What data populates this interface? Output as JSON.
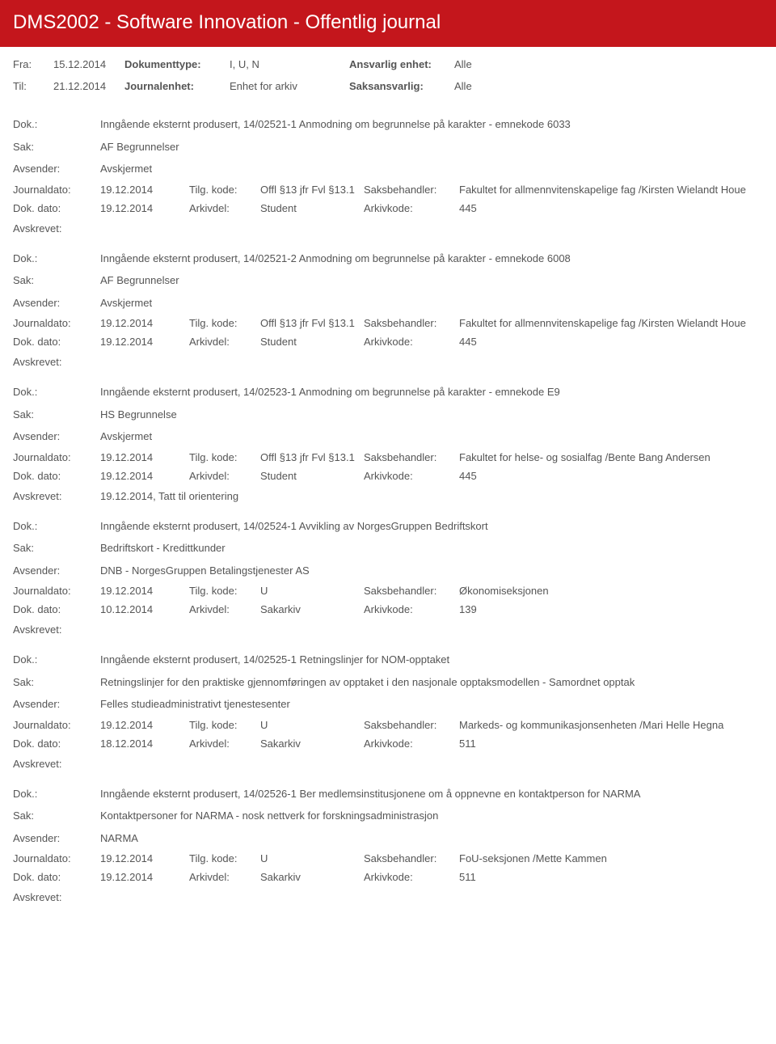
{
  "header": {
    "title": "DMS2002 - Software Innovation - Offentlig journal"
  },
  "meta": {
    "fra_label": "Fra:",
    "fra": "15.12.2014",
    "til_label": "Til:",
    "til": "21.12.2014",
    "doktype_label": "Dokumenttype:",
    "doktype": "I, U, N",
    "journalenhet_label": "Journalenhet:",
    "journalenhet": "Enhet for arkiv",
    "ansvarlig_label": "Ansvarlig enhet:",
    "ansvarlig": "Alle",
    "saksansvarlig_label": "Saksansvarlig:",
    "saksansvarlig": "Alle"
  },
  "labels": {
    "dok": "Dok.:",
    "sak": "Sak:",
    "avsender": "Avsender:",
    "journaldato": "Journaldato:",
    "tilgkode": "Tilg. kode:",
    "saksbehandler": "Saksbehandler:",
    "dokdato": "Dok. dato:",
    "arkivdel": "Arkivdel:",
    "arkivkode": "Arkivkode:",
    "avskrevet": "Avskrevet:"
  },
  "entries": [
    {
      "dok": "Inngående eksternt produsert, 14/02521-1 Anmodning om begrunnelse på karakter - emnekode 6033",
      "sak": "AF Begrunnelser",
      "avsender": "Avskjermet",
      "journaldato": "19.12.2014",
      "tilgkode": "Offl §13 jfr Fvl §13.1",
      "saksbehandler": "Fakultet for allmennvitenskapelige fag /Kirsten Wielandt Houe",
      "dokdato": "19.12.2014",
      "arkivdel": "Student",
      "arkivkode": "445",
      "avskrevet": ""
    },
    {
      "dok": "Inngående eksternt produsert, 14/02521-2 Anmodning om begrunnelse på karakter - emnekode 6008",
      "sak": "AF Begrunnelser",
      "avsender": "Avskjermet",
      "journaldato": "19.12.2014",
      "tilgkode": "Offl §13 jfr Fvl §13.1",
      "saksbehandler": "Fakultet for allmennvitenskapelige fag /Kirsten Wielandt Houe",
      "dokdato": "19.12.2014",
      "arkivdel": "Student",
      "arkivkode": "445",
      "avskrevet": ""
    },
    {
      "dok": "Inngående eksternt produsert, 14/02523-1 Anmodning om begrunnelse på karakter - emnekode E9",
      "sak": "HS Begrunnelse",
      "avsender": "Avskjermet",
      "journaldato": "19.12.2014",
      "tilgkode": "Offl §13 jfr Fvl §13.1",
      "saksbehandler": "Fakultet for helse- og sosialfag /Bente Bang Andersen",
      "dokdato": "19.12.2014",
      "arkivdel": "Student",
      "arkivkode": "445",
      "avskrevet": "19.12.2014, Tatt til orientering"
    },
    {
      "dok": "Inngående eksternt produsert, 14/02524-1 Avvikling av NorgesGruppen Bedriftskort",
      "sak": "Bedriftskort - Kredittkunder",
      "avsender": "DNB - NorgesGruppen Betalingstjenester AS",
      "journaldato": "19.12.2014",
      "tilgkode": "U",
      "saksbehandler": "Økonomiseksjonen",
      "dokdato": "10.12.2014",
      "arkivdel": "Sakarkiv",
      "arkivkode": "139",
      "avskrevet": ""
    },
    {
      "dok": "Inngående eksternt produsert, 14/02525-1 Retningslinjer for NOM-opptaket",
      "sak": "Retningslinjer for den praktiske gjennomføringen av opptaket i den nasjonale opptaksmodellen - Samordnet opptak",
      "avsender": "Felles studieadministrativt tjenestesenter",
      "journaldato": "19.12.2014",
      "tilgkode": "U",
      "saksbehandler": "Markeds- og kommunikasjonsenheten /Mari Helle Hegna",
      "dokdato": "18.12.2014",
      "arkivdel": "Sakarkiv",
      "arkivkode": "511",
      "avskrevet": ""
    },
    {
      "dok": "Inngående eksternt produsert, 14/02526-1 Ber medlemsinstitusjonene om å oppnevne en kontaktperson for NARMA",
      "sak": "Kontaktpersoner for NARMA - nosk nettverk for forskningsadministrasjon",
      "avsender": "NARMA",
      "journaldato": "19.12.2014",
      "tilgkode": "U",
      "saksbehandler": "FoU-seksjonen /Mette Kammen",
      "dokdato": "19.12.2014",
      "arkivdel": "Sakarkiv",
      "arkivkode": "511",
      "avskrevet": ""
    }
  ],
  "style": {
    "header_bg": "#c4161c",
    "header_text": "#ffffff",
    "body_text": "#555555",
    "page_bg": "#ffffff"
  }
}
